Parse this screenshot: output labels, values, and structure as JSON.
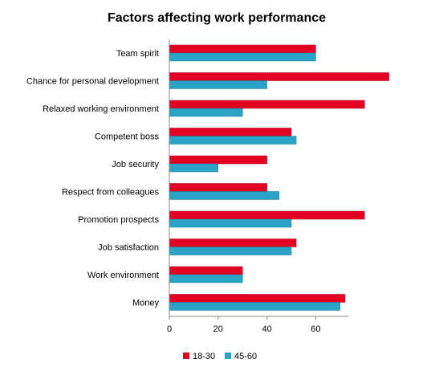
{
  "chart_data": {
    "type": "bar",
    "orientation": "horizontal",
    "title": "Factors affecting work performance",
    "xlabel": "",
    "ylabel": "",
    "xlim": [
      0,
      90
    ],
    "xticks": [
      0,
      20,
      40,
      60
    ],
    "grid": false,
    "legend_position": "bottom",
    "categories": [
      "Team spirit",
      "Chance for personal development",
      "Relaxed working environment",
      "Competent boss",
      "Job security",
      "Respect from colleagues",
      "Promotion prospects",
      "Job satisfaction",
      "Work environment",
      "Money"
    ],
    "series": [
      {
        "name": "18-30",
        "color": "#e30022",
        "values": [
          60,
          90,
          80,
          50,
          40,
          40,
          80,
          52,
          30,
          72
        ]
      },
      {
        "name": "45-60",
        "color": "#2aa3c6",
        "values": [
          60,
          40,
          30,
          52,
          20,
          45,
          50,
          50,
          30,
          70
        ]
      }
    ]
  }
}
